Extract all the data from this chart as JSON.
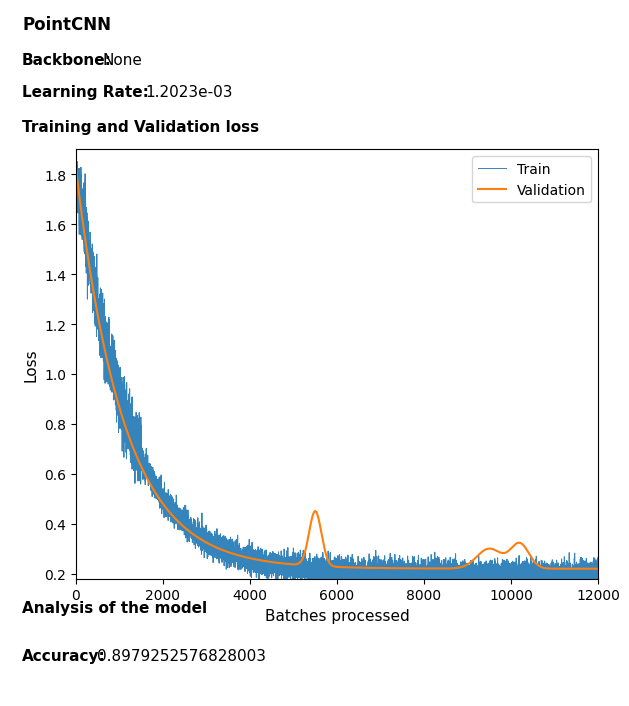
{
  "title": "PointCNN",
  "backbone_label": "Backbone:",
  "backbone_value": "None",
  "lr_label": "Learning Rate:",
  "lr_value": "1.2023e-03",
  "section_label": "Training and Validation loss",
  "analysis_label": "Analysis of the model",
  "accuracy_label": "Accuracy:",
  "accuracy_value": "0.8979252576828003",
  "xlabel": "Batches processed",
  "ylabel": "Loss",
  "legend_train": "Train",
  "legend_val": "Validation",
  "train_color": "#1f77b4",
  "val_color": "#ff7f0e",
  "xlim": [
    0,
    12000
  ],
  "ylim": [
    0.18,
    1.9
  ],
  "yticks": [
    0.2,
    0.4,
    0.6,
    0.8,
    1.0,
    1.2,
    1.4,
    1.6,
    1.8
  ],
  "xticks": [
    0,
    2000,
    4000,
    6000,
    8000,
    10000,
    12000
  ],
  "n_train": 12000
}
